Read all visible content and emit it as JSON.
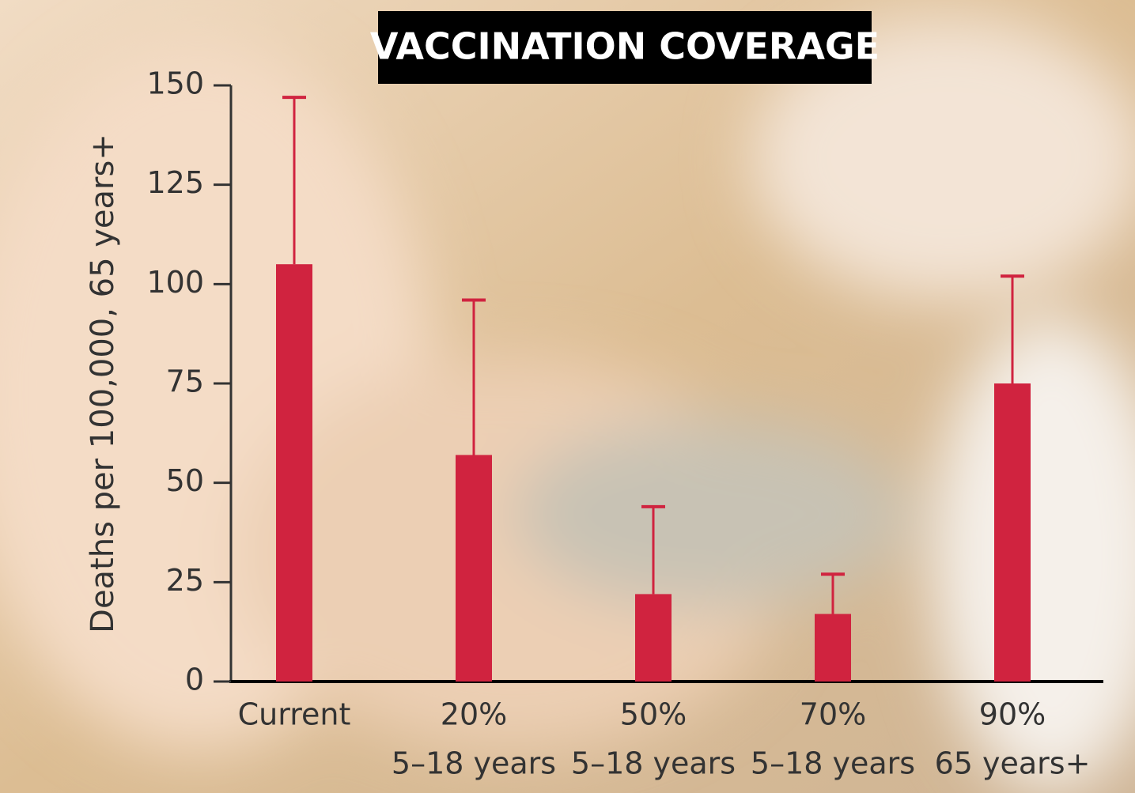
{
  "chart_data": {
    "type": "bar",
    "title": "VACCINATION COVERAGE",
    "y_label": "Deaths per 100,000, 65 years+",
    "categories": [
      [
        "Current"
      ],
      [
        "20%",
        "5–18 years"
      ],
      [
        "50%",
        "5–18 years"
      ],
      [
        "70%",
        "5–18 years"
      ],
      [
        "90%",
        "65 years+"
      ]
    ],
    "values": [
      105,
      57,
      22,
      17,
      75
    ],
    "errors": [
      42,
      39,
      22,
      10,
      27
    ],
    "color": "#d0233f",
    "ylim": [
      0,
      150
    ],
    "yticks": [
      0,
      25,
      50,
      75,
      100,
      125,
      150
    ]
  }
}
